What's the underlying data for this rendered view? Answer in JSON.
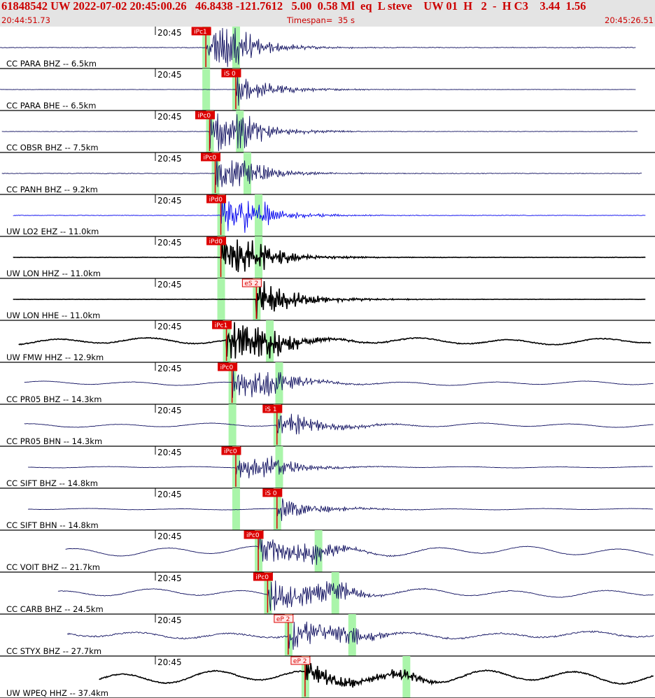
{
  "header": {
    "title": "61848542 UW 2022-07-02 20:45:00.26   46.8438 -121.7612   5.00  0.58 Ml  eq  L steve    UW 01  H   2  -  H C3    3.44  1.56",
    "start_time": "20:44:51.73",
    "timespan": "Timespan=  35 s",
    "end_time": "20:45:26.51"
  },
  "colors": {
    "pick": "#dd0000",
    "window": "#aaf5aa",
    "trace_default": "#101060",
    "trace_blue": "#0000ee",
    "trace_black": "#000000"
  },
  "chart_data": {
    "type": "line",
    "title": "",
    "time_start": "20:44:51.73",
    "time_end": "20:45:26.51",
    "timespan_s": 35,
    "minute_tick_label": "20:45",
    "traces": [
      {
        "label": "CC PARA BHZ -- 6.5km",
        "color": "default",
        "trace_start_s": 0.0,
        "trace_end_s": 34.0,
        "phase": "P",
        "pick_label": "iPc1",
        "p_s": 11.0,
        "s_s": 12.6,
        "amp": 1.0,
        "noise": 0.15,
        "lp": 0
      },
      {
        "label": "CC PARA BHE -- 6.5km",
        "color": "default",
        "trace_start_s": 0.0,
        "trace_end_s": 34.0,
        "phase": "S",
        "pick_label": "iS 0",
        "p_s": 11.0,
        "s_s": 12.6,
        "amp": 0.55,
        "noise": 0.08,
        "lp": 0
      },
      {
        "label": "CC OBSR BHZ -- 7.5km",
        "color": "default",
        "trace_start_s": 0.1,
        "trace_end_s": 34.1,
        "phase": "P",
        "pick_label": "iPc0",
        "p_s": 11.2,
        "s_s": 12.8,
        "amp": 1.0,
        "noise": 0.1,
        "lp": 0
      },
      {
        "label": "CC PANH BHZ -- 9.2km",
        "color": "default",
        "trace_start_s": 0.1,
        "trace_end_s": 34.3,
        "phase": "P",
        "pick_label": "iPc0",
        "p_s": 11.5,
        "s_s": 13.2,
        "amp": 0.7,
        "noise": 0.15,
        "lp": 0
      },
      {
        "label": "UW LO2 EHZ -- 11.0km",
        "color": "blue",
        "trace_start_s": 0.7,
        "trace_end_s": 34.5,
        "phase": "P",
        "pick_label": "iPd0",
        "p_s": 11.8,
        "s_s": 13.8,
        "amp": 0.85,
        "noise": 0.12,
        "lp": 0
      },
      {
        "label": "UW LON HHZ -- 11.0km",
        "color": "black",
        "trace_start_s": 0.7,
        "trace_end_s": 34.5,
        "phase": "P",
        "pick_label": "iPd0",
        "p_s": 11.8,
        "s_s": 13.8,
        "amp": 0.9,
        "noise": 0.1,
        "lp": 0
      },
      {
        "label": "UW LON HHE -- 11.0km",
        "color": "black",
        "trace_start_s": 0.7,
        "trace_end_s": 34.5,
        "phase": "S",
        "pick_label": "eS 2",
        "p_s": 11.8,
        "s_s": 13.7,
        "amp": 0.75,
        "noise": 0.08,
        "lp": 0
      },
      {
        "label": "UW FMW HHZ -- 12.9km",
        "color": "black",
        "trace_start_s": 1.0,
        "trace_end_s": 34.8,
        "phase": "P",
        "pick_label": "iPc1",
        "p_s": 12.1,
        "s_s": 14.4,
        "amp": 0.95,
        "noise": 0.2,
        "lp": 0.5
      },
      {
        "label": "CC PR05 BHZ -- 14.3km",
        "color": "default",
        "trace_start_s": 1.3,
        "trace_end_s": 35.0,
        "phase": "P",
        "pick_label": "iPc0",
        "p_s": 12.4,
        "s_s": 14.9,
        "amp": 0.8,
        "noise": 0.08,
        "lp": 0.3
      },
      {
        "label": "CC PR05 BHN -- 14.3km",
        "color": "default",
        "trace_start_s": 1.3,
        "trace_end_s": 35.0,
        "phase": "S",
        "pick_label": "iS 1",
        "p_s": 12.4,
        "s_s": 14.8,
        "amp": 0.7,
        "noise": 0.08,
        "lp": 0.3
      },
      {
        "label": "CC SIFT BHZ -- 14.8km",
        "color": "default",
        "trace_start_s": 1.5,
        "trace_end_s": 35.2,
        "phase": "P",
        "pick_label": "iPc0",
        "p_s": 12.6,
        "s_s": 14.9,
        "amp": 0.6,
        "noise": 0.06,
        "lp": 0.1
      },
      {
        "label": "CC SIFT BHN -- 14.8km",
        "color": "default",
        "trace_start_s": 1.5,
        "trace_end_s": 35.2,
        "phase": "S",
        "pick_label": "iS 0",
        "p_s": 12.6,
        "s_s": 14.8,
        "amp": 0.5,
        "noise": 0.06,
        "lp": 0.1
      },
      {
        "label": "CC VOIT BHZ -- 21.7km",
        "color": "default",
        "trace_start_s": 3.5,
        "trace_end_s": 36.0,
        "phase": "P",
        "pick_label": "iPc0",
        "p_s": 13.8,
        "s_s": 17.0,
        "amp": 0.8,
        "noise": 0.1,
        "lp": 0.7
      },
      {
        "label": "CC CARB BHZ -- 24.5km",
        "color": "default",
        "trace_start_s": 3.1,
        "trace_end_s": 36.5,
        "phase": "P",
        "pick_label": "iPc0",
        "p_s": 14.3,
        "s_s": 17.9,
        "amp": 0.85,
        "noise": 0.15,
        "lp": 0.6
      },
      {
        "label": "CC STYX BHZ -- 27.7km",
        "color": "default",
        "trace_start_s": 3.6,
        "trace_end_s": 37.0,
        "phase": "P",
        "pick_label": "eP 2",
        "p_s": 15.4,
        "s_s": 18.8,
        "amp": 0.8,
        "noise": 0.35,
        "lp": 0.5
      },
      {
        "label": "UW WPEQ HHZ -- 37.4km",
        "color": "black",
        "trace_start_s": 5.3,
        "trace_end_s": 39.0,
        "phase": "P",
        "pick_label": "eP 2",
        "p_s": 16.3,
        "s_s": 21.7,
        "amp": 0.55,
        "noise": 0.25,
        "lp": 1.0
      }
    ]
  }
}
